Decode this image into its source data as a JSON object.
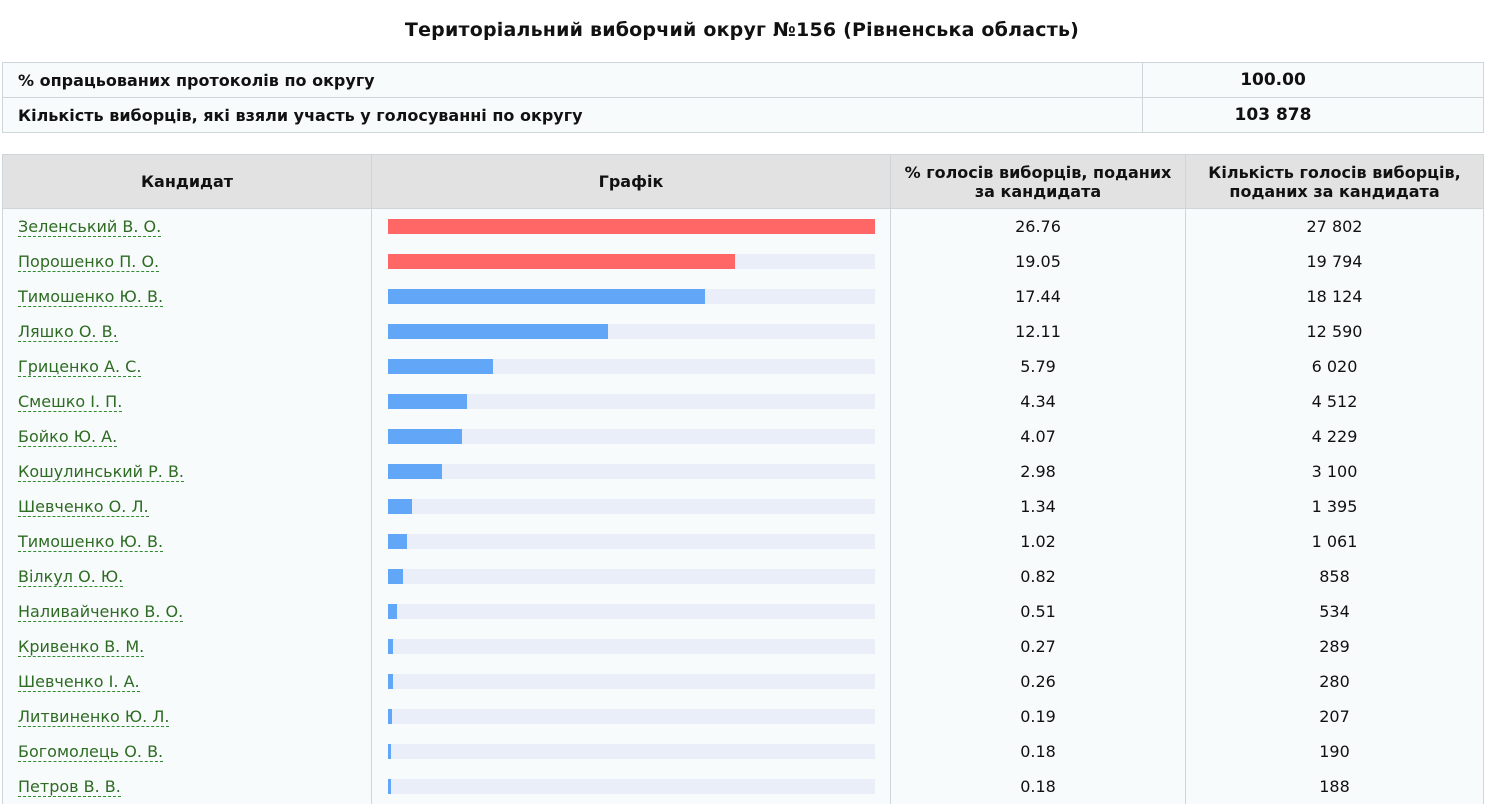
{
  "page": {
    "title": "Територіальний виборчий округ №156 (Рівненська область)"
  },
  "summary": {
    "rows": [
      {
        "label": "% опрацьованих протоколів по округу",
        "value": "100.00"
      },
      {
        "label": "Кількість виборців, які взяли участь у голосуванні по округу",
        "value": "103 878"
      }
    ]
  },
  "table": {
    "headers": {
      "candidate": "Кандидат",
      "chart": "Графік",
      "percent": "% голосів виборців, поданих за кандидата",
      "count": "Кількість голосів виборців, поданих за кандидата"
    },
    "colors": {
      "leader": "#ff6666",
      "other": "#62a6f7",
      "track": "#e9eef8"
    },
    "max_percent": 26.76,
    "rows": [
      {
        "name": "Зеленський В. О.",
        "percent": "26.76",
        "votes": "27 802",
        "pct": 26.76,
        "leader": true
      },
      {
        "name": "Порошенко П. О.",
        "percent": "19.05",
        "votes": "19 794",
        "pct": 19.05,
        "leader": true
      },
      {
        "name": "Тимошенко Ю. В.",
        "percent": "17.44",
        "votes": "18 124",
        "pct": 17.44,
        "leader": false
      },
      {
        "name": "Ляшко О. В.",
        "percent": "12.11",
        "votes": "12 590",
        "pct": 12.11,
        "leader": false
      },
      {
        "name": "Гриценко А. С.",
        "percent": "5.79",
        "votes": "6 020",
        "pct": 5.79,
        "leader": false
      },
      {
        "name": "Смешко І. П.",
        "percent": "4.34",
        "votes": "4 512",
        "pct": 4.34,
        "leader": false
      },
      {
        "name": "Бойко Ю. А.",
        "percent": "4.07",
        "votes": "4 229",
        "pct": 4.07,
        "leader": false
      },
      {
        "name": "Кошулинський Р. В.",
        "percent": "2.98",
        "votes": "3 100",
        "pct": 2.98,
        "leader": false
      },
      {
        "name": "Шевченко О. Л.",
        "percent": "1.34",
        "votes": "1 395",
        "pct": 1.34,
        "leader": false
      },
      {
        "name": "Тимошенко Ю. В.",
        "percent": "1.02",
        "votes": "1 061",
        "pct": 1.02,
        "leader": false
      },
      {
        "name": "Вілкул О. Ю.",
        "percent": "0.82",
        "votes": "858",
        "pct": 0.82,
        "leader": false
      },
      {
        "name": "Наливайченко В. О.",
        "percent": "0.51",
        "votes": "534",
        "pct": 0.51,
        "leader": false
      },
      {
        "name": "Кривенко В. М.",
        "percent": "0.27",
        "votes": "289",
        "pct": 0.27,
        "leader": false
      },
      {
        "name": "Шевченко І. А.",
        "percent": "0.26",
        "votes": "280",
        "pct": 0.26,
        "leader": false
      },
      {
        "name": "Литвиненко Ю. Л.",
        "percent": "0.19",
        "votes": "207",
        "pct": 0.19,
        "leader": false
      },
      {
        "name": "Богомолець О. В.",
        "percent": "0.18",
        "votes": "190",
        "pct": 0.18,
        "leader": false
      },
      {
        "name": "Петров В. В.",
        "percent": "0.18",
        "votes": "188",
        "pct": 0.18,
        "leader": false
      }
    ]
  }
}
